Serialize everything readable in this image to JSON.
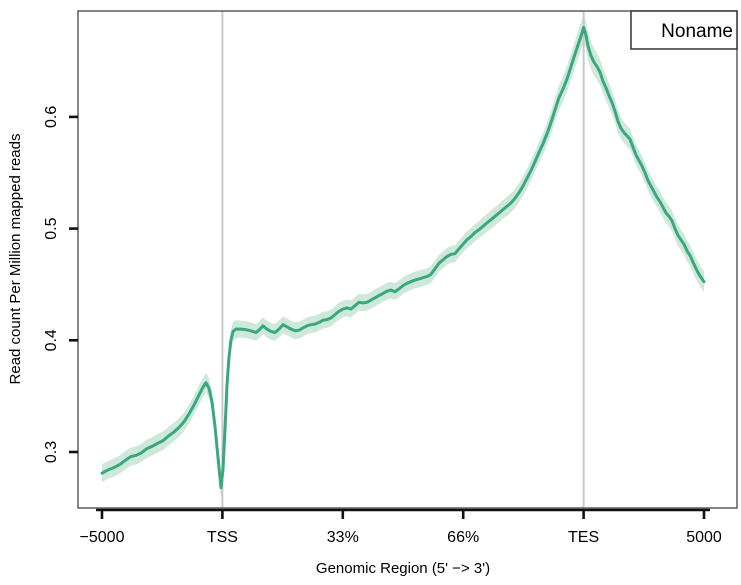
{
  "chart_data": {
    "type": "line",
    "title": "",
    "xlabel": "Genomic Region (5' −> 3')",
    "ylabel": "Read count Per Million mapped reads",
    "x_ticklabels": [
      "−5000",
      "TSS",
      "33%",
      "66%",
      "TES",
      "5000"
    ],
    "x_tickunits": [
      0,
      1,
      2,
      3,
      4,
      5
    ],
    "y_ticklabels": [
      "0.3",
      "0.4",
      "0.5",
      "0.6"
    ],
    "y_tickvalues": [
      0.3,
      0.4,
      0.5,
      0.6
    ],
    "xlim_units": [
      0,
      5
    ],
    "ylim": [
      0.25,
      0.695
    ],
    "grid": false,
    "vlines_units": [
      1,
      4
    ],
    "vline_color": "#c9c9c9",
    "legend": {
      "label": "Noname",
      "text_color": "#55c1a1",
      "position": "top-right"
    },
    "series": [
      {
        "name": "Noname",
        "line_color": "#3aa87c",
        "band_color": "#cfe8dc",
        "points_unitx_value": [
          [
            0,
            0.281
          ],
          [
            0.05,
            0.284
          ],
          [
            0.1,
            0.286
          ],
          [
            0.15,
            0.289
          ],
          [
            0.199,
            0.293
          ],
          [
            0.241,
            0.296
          ],
          [
            0.282,
            0.297
          ],
          [
            0.324,
            0.299
          ],
          [
            0.374,
            0.303
          ],
          [
            0.415,
            0.305
          ],
          [
            0.465,
            0.308
          ],
          [
            0.507,
            0.31
          ],
          [
            0.548,
            0.314
          ],
          [
            0.598,
            0.318
          ],
          [
            0.64,
            0.322
          ],
          [
            0.681,
            0.327
          ],
          [
            0.723,
            0.334
          ],
          [
            0.764,
            0.342
          ],
          [
            0.806,
            0.351
          ],
          [
            0.839,
            0.358
          ],
          [
            0.864,
            0.362
          ],
          [
            0.889,
            0.357
          ],
          [
            0.914,
            0.345
          ],
          [
            0.939,
            0.322
          ],
          [
            0.963,
            0.296
          ],
          [
            0.988,
            0.268
          ],
          [
            1.005,
            0.285
          ],
          [
            1.022,
            0.32
          ],
          [
            1.038,
            0.36
          ],
          [
            1.055,
            0.385
          ],
          [
            1.071,
            0.4
          ],
          [
            1.088,
            0.408
          ],
          [
            1.113,
            0.41
          ],
          [
            1.154,
            0.41
          ],
          [
            1.196,
            0.4095
          ],
          [
            1.237,
            0.4085
          ],
          [
            1.279,
            0.407
          ],
          [
            1.312,
            0.41
          ],
          [
            1.337,
            0.413
          ],
          [
            1.37,
            0.41
          ],
          [
            1.404,
            0.408
          ],
          [
            1.437,
            0.407
          ],
          [
            1.47,
            0.41
          ],
          [
            1.503,
            0.414
          ],
          [
            1.537,
            0.412
          ],
          [
            1.57,
            0.41
          ],
          [
            1.603,
            0.4085
          ],
          [
            1.636,
            0.409
          ],
          [
            1.669,
            0.411
          ],
          [
            1.703,
            0.413
          ],
          [
            1.736,
            0.414
          ],
          [
            1.769,
            0.4145
          ],
          [
            1.802,
            0.416
          ],
          [
            1.836,
            0.418
          ],
          [
            1.869,
            0.4185
          ],
          [
            1.902,
            0.42
          ],
          [
            1.935,
            0.423
          ],
          [
            1.968,
            0.426
          ],
          [
            2.002,
            0.428
          ],
          [
            2.035,
            0.429
          ],
          [
            2.068,
            0.428
          ],
          [
            2.101,
            0.431
          ],
          [
            2.134,
            0.434
          ],
          [
            2.168,
            0.4335
          ],
          [
            2.201,
            0.434
          ],
          [
            2.234,
            0.436
          ],
          [
            2.267,
            0.438
          ],
          [
            2.301,
            0.44
          ],
          [
            2.334,
            0.442
          ],
          [
            2.367,
            0.444
          ],
          [
            2.4,
            0.445
          ],
          [
            2.433,
            0.4435
          ],
          [
            2.467,
            0.446
          ],
          [
            2.5,
            0.449
          ],
          [
            2.533,
            0.451
          ],
          [
            2.566,
            0.4525
          ],
          [
            2.6,
            0.454
          ],
          [
            2.633,
            0.455
          ],
          [
            2.666,
            0.456
          ],
          [
            2.699,
            0.457
          ],
          [
            2.732,
            0.459
          ],
          [
            2.766,
            0.464
          ],
          [
            2.799,
            0.469
          ],
          [
            2.832,
            0.472
          ],
          [
            2.865,
            0.475
          ],
          [
            2.899,
            0.477
          ],
          [
            2.932,
            0.4775
          ],
          [
            2.965,
            0.482
          ],
          [
            2.998,
            0.486
          ],
          [
            3.031,
            0.49
          ],
          [
            3.065,
            0.493
          ],
          [
            3.098,
            0.4965
          ],
          [
            3.131,
            0.499
          ],
          [
            3.164,
            0.502
          ],
          [
            3.197,
            0.505
          ],
          [
            3.231,
            0.508
          ],
          [
            3.264,
            0.511
          ],
          [
            3.297,
            0.514
          ],
          [
            3.33,
            0.517
          ],
          [
            3.364,
            0.52
          ],
          [
            3.397,
            0.523
          ],
          [
            3.43,
            0.527
          ],
          [
            3.463,
            0.532
          ],
          [
            3.496,
            0.538
          ],
          [
            3.53,
            0.545
          ],
          [
            3.563,
            0.552
          ],
          [
            3.596,
            0.56
          ],
          [
            3.629,
            0.568
          ],
          [
            3.663,
            0.576
          ],
          [
            3.696,
            0.585
          ],
          [
            3.729,
            0.595
          ],
          [
            3.762,
            0.606
          ],
          [
            3.795,
            0.617
          ],
          [
            3.829,
            0.625
          ],
          [
            3.862,
            0.634
          ],
          [
            3.895,
            0.645
          ],
          [
            3.928,
            0.656
          ],
          [
            3.962,
            0.667
          ],
          [
            3.987,
            0.675
          ],
          [
            4,
            0.68
          ],
          [
            4.02,
            0.673
          ],
          [
            4.036,
            0.664
          ],
          [
            4.061,
            0.655
          ],
          [
            4.086,
            0.649
          ],
          [
            4.111,
            0.645
          ],
          [
            4.136,
            0.64
          ],
          [
            4.161,
            0.632
          ],
          [
            4.186,
            0.626
          ],
          [
            4.211,
            0.619
          ],
          [
            4.236,
            0.613
          ],
          [
            4.261,
            0.605
          ],
          [
            4.286,
            0.596
          ],
          [
            4.31,
            0.59
          ],
          [
            4.335,
            0.586
          ],
          [
            4.36,
            0.583
          ],
          [
            4.385,
            0.58
          ],
          [
            4.41,
            0.573
          ],
          [
            4.435,
            0.566
          ],
          [
            4.46,
            0.561
          ],
          [
            4.485,
            0.556
          ],
          [
            4.51,
            0.55
          ],
          [
            4.535,
            0.543
          ],
          [
            4.56,
            0.538
          ],
          [
            4.585,
            0.533
          ],
          [
            4.61,
            0.528
          ],
          [
            4.635,
            0.524
          ],
          [
            4.66,
            0.519
          ],
          [
            4.684,
            0.514
          ],
          [
            4.709,
            0.511
          ],
          [
            4.734,
            0.507
          ],
          [
            4.759,
            0.5
          ],
          [
            4.784,
            0.494
          ],
          [
            4.809,
            0.49
          ],
          [
            4.834,
            0.486
          ],
          [
            4.859,
            0.48
          ],
          [
            4.884,
            0.476
          ],
          [
            4.909,
            0.47
          ],
          [
            4.934,
            0.464
          ],
          [
            4.959,
            0.459
          ],
          [
            4.984,
            0.455
          ],
          [
            5,
            0.4525
          ]
        ],
        "band_halfwidth_unitx_hw": [
          [
            0,
            0.008
          ],
          [
            0.85,
            0.0085
          ],
          [
            1.0,
            0.01
          ],
          [
            1.15,
            0.0075
          ],
          [
            3.0,
            0.0075
          ],
          [
            3.6,
            0.009
          ],
          [
            3.95,
            0.0125
          ],
          [
            4.05,
            0.0125
          ],
          [
            4.4,
            0.009
          ],
          [
            5,
            0.0095
          ]
        ]
      }
    ]
  }
}
